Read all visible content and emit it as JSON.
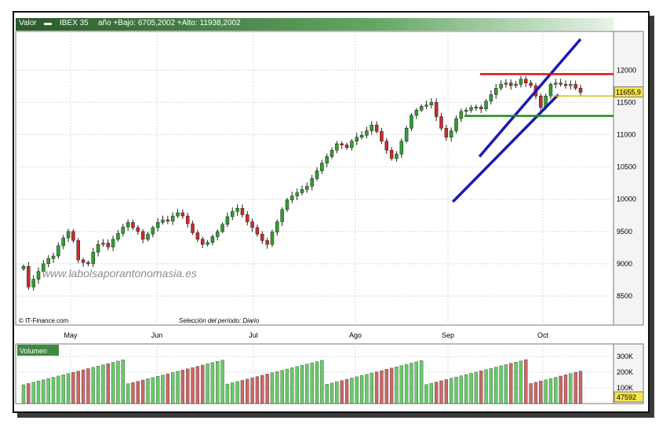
{
  "header": {
    "valor_label": "Valor",
    "symbol": "IBEX 35",
    "info": "año +Bajo: 6705,2002 +Alto: 11938,2002"
  },
  "footer": {
    "copyright": "© IT-Finance.com",
    "period": "Selección del período: Diario"
  },
  "watermark": "www.labolsaporantonomasia.es",
  "volume_label": "Volumen",
  "colors": {
    "up": "#2ea02e",
    "down": "#cc2b2b",
    "channel": "#1a1ab3",
    "resistance": "#e01010",
    "support": "#1e8a1e",
    "header_green": "#3f8a3f"
  },
  "chart_data": [
    {
      "type": "candlestick",
      "title": "IBEX 35",
      "y_ticks": [
        8500,
        9000,
        9500,
        10000,
        10500,
        11000,
        11500,
        12000
      ],
      "ylim": [
        8050,
        12600
      ],
      "x_labels": [
        "May",
        "Jun",
        "Jul",
        "Ago",
        "Sep",
        "Oct"
      ],
      "last_value_label": "11655,9",
      "last_value": 11655.9,
      "closes": [
        8960,
        8640,
        8760,
        8880,
        9000,
        9080,
        9120,
        9280,
        9400,
        9500,
        9360,
        9060,
        9020,
        9000,
        9180,
        9300,
        9320,
        9260,
        9380,
        9470,
        9570,
        9640,
        9560,
        9500,
        9380,
        9460,
        9560,
        9640,
        9680,
        9660,
        9740,
        9790,
        9740,
        9620,
        9480,
        9380,
        9300,
        9330,
        9420,
        9500,
        9610,
        9730,
        9810,
        9860,
        9760,
        9650,
        9560,
        9460,
        9360,
        9300,
        9490,
        9650,
        9840,
        9990,
        10050,
        10100,
        10150,
        10200,
        10320,
        10440,
        10560,
        10660,
        10760,
        10860,
        10840,
        10800,
        10900,
        10960,
        10990,
        11060,
        11150,
        11050,
        10900,
        10760,
        10630,
        10700,
        10900,
        11100,
        11300,
        11380,
        11440,
        11460,
        11500,
        11280,
        11100,
        10960,
        11060,
        11250,
        11360,
        11380,
        11420,
        11430,
        11400,
        11520,
        11620,
        11720,
        11780,
        11800,
        11760,
        11780,
        11860,
        11800,
        11760,
        11600,
        11420,
        11600,
        11780,
        11800,
        11780,
        11760,
        11780,
        11720,
        11655.9
      ],
      "channel_upper": [
        [
          10640,
          10660
        ],
        [
          13000,
          12480
        ]
      ],
      "channel_lower": [
        [
          10020,
          9960
        ],
        [
          12480,
          11620
        ]
      ],
      "resistance": 11938,
      "support": 11290,
      "yellow_level": 11600
    },
    {
      "type": "bar",
      "title": "Volumen",
      "y_ticks": [
        "100K",
        "200K",
        "300K"
      ],
      "y_tick_values": [
        100000,
        200000,
        300000
      ],
      "ylim": [
        0,
        380000
      ],
      "last_value_label": "47592",
      "last_value": 47592
    }
  ]
}
